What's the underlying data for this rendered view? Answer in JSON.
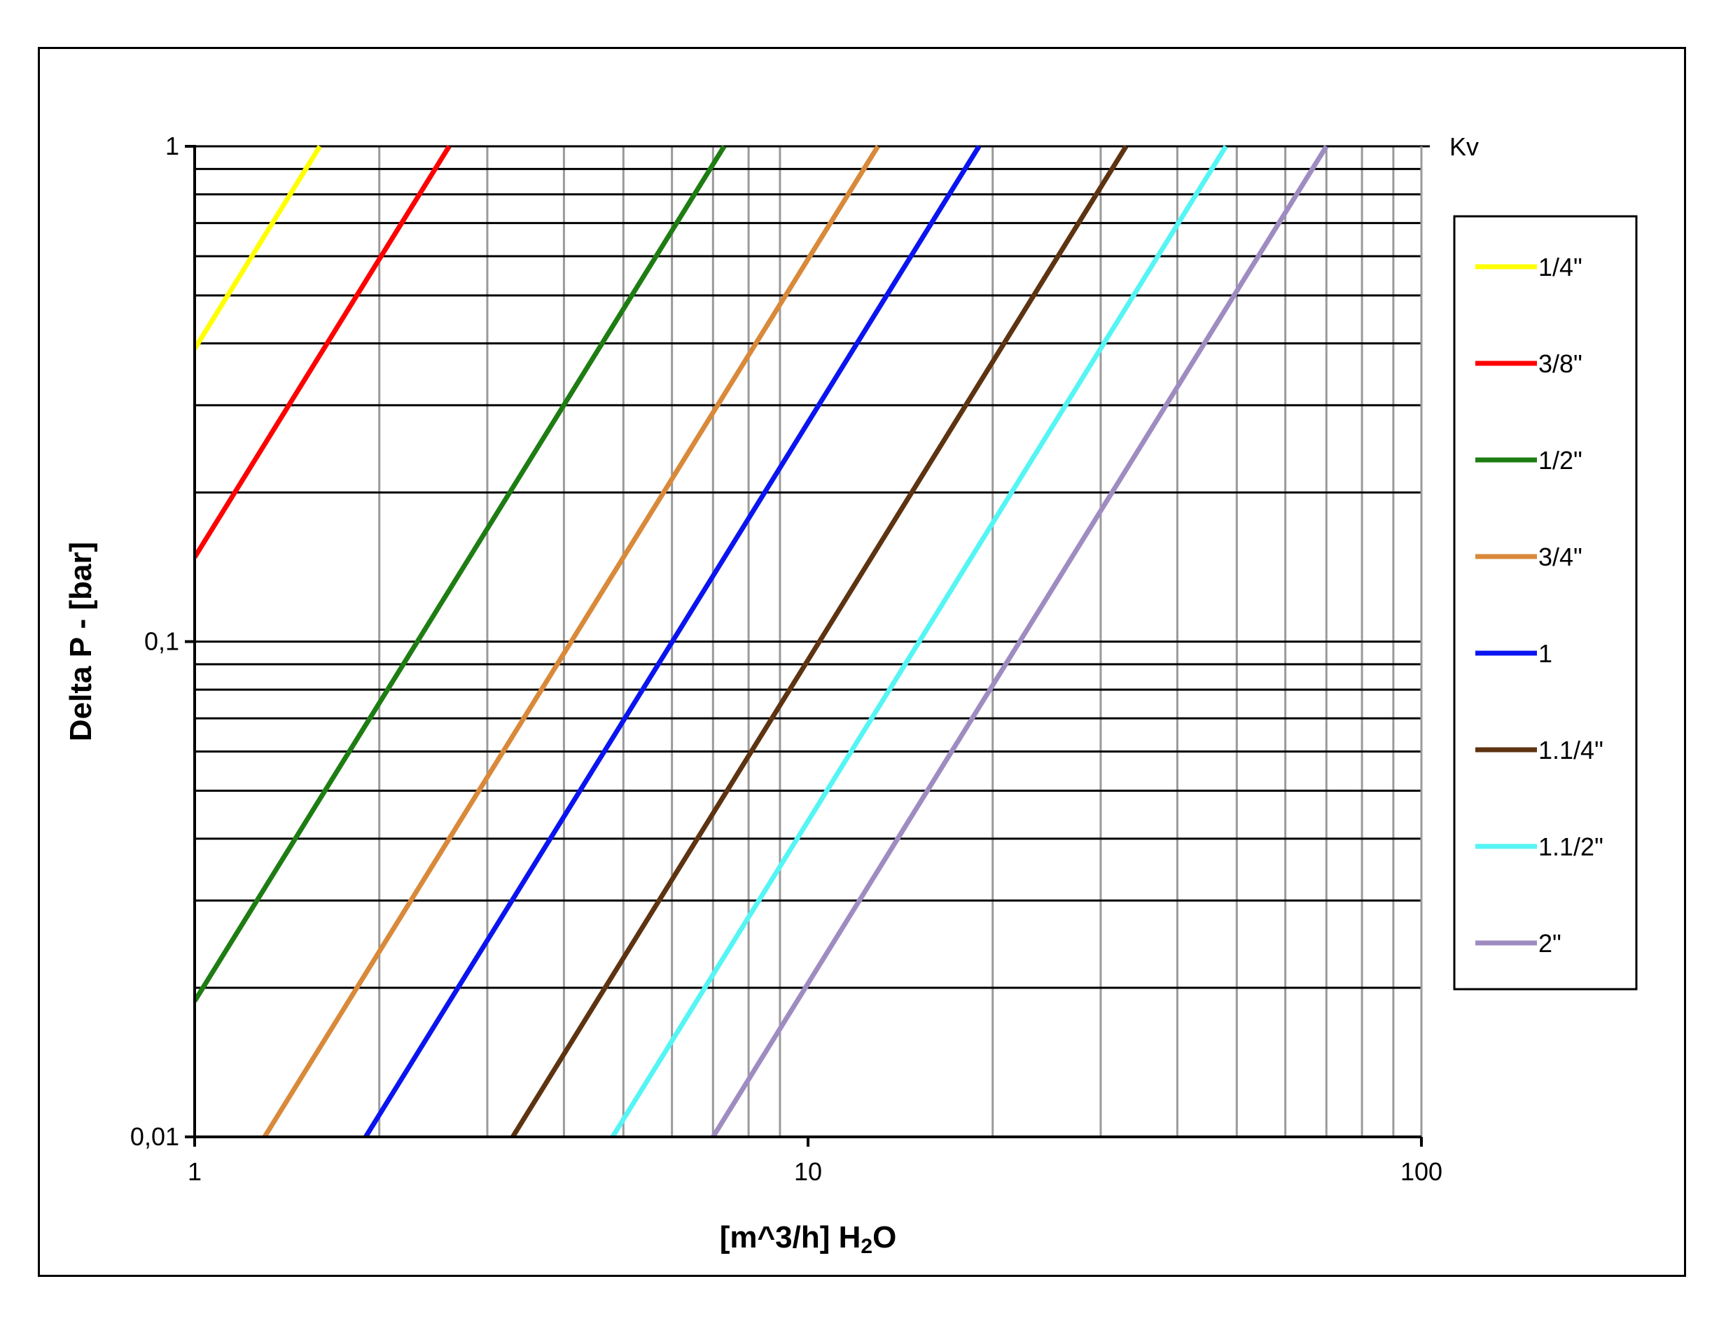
{
  "chart_data": {
    "type": "line",
    "title": "",
    "xlabel": "[m^3/h] H",
    "xlabel_sub": "2",
    "xlabel_suffix": "O",
    "ylabel": "Delta P - [bar]",
    "x_scale": "log",
    "y_scale": "log",
    "xlim": [
      1,
      100
    ],
    "ylim": [
      0.01,
      1
    ],
    "x_ticks": [
      1,
      10,
      100
    ],
    "x_tick_labels": [
      "1",
      "10",
      "100"
    ],
    "y_ticks": [
      0.01,
      0.1,
      1
    ],
    "y_tick_labels": [
      "0,01",
      "0,1",
      "1"
    ],
    "corner_label": "Kv",
    "grid": true,
    "legend_position": "right",
    "series": [
      {
        "name": "1/4\"",
        "color": "#ffff00",
        "kv": 1.6,
        "x": [
          1.0,
          1.6
        ],
        "y": [
          0.39,
          1.0
        ]
      },
      {
        "name": "3/8\"",
        "color": "#ff0000",
        "kv": 2.6,
        "x": [
          1.0,
          2.6
        ],
        "y": [
          0.148,
          1.0
        ]
      },
      {
        "name": "1/2\"",
        "color": "#1e7d12",
        "kv": 7.3,
        "x": [
          1.0,
          7.3
        ],
        "y": [
          0.0188,
          1.0
        ]
      },
      {
        "name": "3/4\"",
        "color": "#d9893a",
        "kv": 13,
        "x": [
          1.3,
          13
        ],
        "y": [
          0.01,
          1.0
        ]
      },
      {
        "name": "1",
        "color": "#0a14f0",
        "kv": 19,
        "x": [
          1.9,
          19
        ],
        "y": [
          0.01,
          1.0
        ]
      },
      {
        "name": "1.1/4\"",
        "color": "#5e3310",
        "kv": 33,
        "x": [
          3.3,
          33
        ],
        "y": [
          0.01,
          1.0
        ]
      },
      {
        "name": "1.1/2\"",
        "color": "#55f5f5",
        "kv": 48,
        "x": [
          4.8,
          48
        ],
        "y": [
          0.01,
          1.0
        ]
      },
      {
        "name": "2\"",
        "color": "#9e8cc1",
        "kv": 70,
        "x": [
          7.0,
          70
        ],
        "y": [
          0.01,
          1.0
        ]
      }
    ]
  }
}
